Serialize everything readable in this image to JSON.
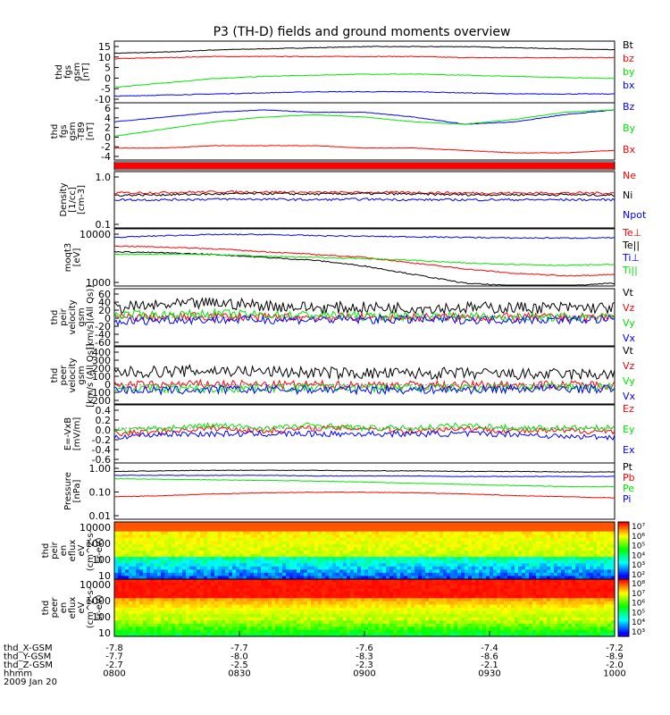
{
  "title": "P3 (TH-D) fields and ground moments overview",
  "colors": {
    "black": "#000000",
    "red": "#ff0000",
    "green": "#00e600",
    "blue": "#0000ff"
  },
  "chart_data": [
    {
      "type": "line",
      "ylabel": [
        "thd",
        "fgs",
        "gsm",
        "[nT]"
      ],
      "yticks": [
        "15",
        "10",
        "5",
        "0",
        "-5",
        "-10"
      ],
      "ylim": [
        -12,
        16
      ],
      "series": [
        {
          "name": "Bt",
          "color": "black",
          "values": [
            10.5,
            11,
            12,
            12.5,
            13,
            13.5,
            13.5,
            13.5,
            13,
            12.5,
            12
          ]
        },
        {
          "name": "bz",
          "color": "red",
          "values": [
            8,
            8.5,
            9,
            9,
            9,
            9,
            9,
            8.5,
            8.5,
            8.5,
            8.5
          ]
        },
        {
          "name": "by",
          "color": "green",
          "values": [
            -5,
            -3,
            -1,
            0,
            0.5,
            1,
            1,
            0.5,
            0,
            -0.5,
            -1
          ]
        },
        {
          "name": "bx",
          "color": "blue",
          "values": [
            -9,
            -8.5,
            -8,
            -7.5,
            -7,
            -7,
            -7,
            -7.5,
            -8,
            -8,
            -8
          ]
        }
      ]
    },
    {
      "type": "line",
      "ylabel": [
        "thd",
        "fgs",
        "gsm",
        "-T89",
        "[nT]"
      ],
      "yticks": [
        "6",
        "4",
        "2",
        "0",
        "-2",
        "-4"
      ],
      "ylim": [
        -5,
        7
      ],
      "series": [
        {
          "name": "Bz",
          "color": "blue",
          "values": [
            3,
            4,
            5,
            5.5,
            5,
            5,
            4,
            2.5,
            3,
            4.5,
            5.5
          ]
        },
        {
          "name": "By",
          "color": "green",
          "values": [
            0,
            1.5,
            3,
            4,
            4.5,
            4,
            3,
            2.5,
            3.5,
            5,
            5.5
          ]
        },
        {
          "name": "Bx",
          "color": "red",
          "values": [
            -2.5,
            -2.5,
            -2,
            -2,
            -2,
            -2.5,
            -2.5,
            -3,
            -3.5,
            -3.5,
            -3
          ]
        }
      ]
    },
    {
      "type": "line",
      "ylabel": [
        "Density",
        "[1/cc]",
        "[cm-3]"
      ],
      "yticks": [
        "1.0",
        "0.1"
      ],
      "ylim": [
        0,
        1
      ],
      "series": [
        {
          "name": "Ne",
          "color": "red",
          "values": [
            0.62,
            0.63,
            0.64,
            0.64,
            0.63,
            0.63,
            0.63,
            0.62,
            0.62,
            0.62,
            0.62
          ]
        },
        {
          "name": "Ni",
          "color": "black",
          "values": [
            0.58,
            0.59,
            0.6,
            0.61,
            0.6,
            0.61,
            0.6,
            0.59,
            0.59,
            0.59,
            0.58
          ]
        },
        {
          "name": "Npot",
          "color": "blue",
          "values": [
            0.5,
            0.5,
            0.51,
            0.51,
            0.5,
            0.51,
            0.5,
            0.5,
            0.5,
            0.5,
            0.5
          ]
        }
      ]
    },
    {
      "type": "line",
      "ylabel": [
        "moqt3",
        "[eV]"
      ],
      "yticks": [
        "10000",
        "1000"
      ],
      "ylim": [
        0,
        1
      ],
      "series": [
        {
          "name": "Te⊥",
          "color": "red",
          "values": [
            0.7,
            0.68,
            0.65,
            0.6,
            0.55,
            0.5,
            0.4,
            0.3,
            0.22,
            0.18,
            0.2
          ]
        },
        {
          "name": "Te||",
          "color": "black",
          "values": [
            0.6,
            0.58,
            0.55,
            0.5,
            0.45,
            0.35,
            0.2,
            0.05,
            0.0,
            0.0,
            0.05
          ]
        },
        {
          "name": "Ti⊥",
          "color": "blue",
          "values": [
            0.85,
            0.88,
            0.9,
            0.9,
            0.88,
            0.87,
            0.86,
            0.85,
            0.84,
            0.84,
            0.84
          ]
        },
        {
          "name": "Ti||",
          "color": "green",
          "values": [
            0.55,
            0.56,
            0.55,
            0.52,
            0.5,
            0.48,
            0.45,
            0.4,
            0.38,
            0.36,
            0.38
          ]
        }
      ]
    },
    {
      "type": "line",
      "ylabel": [
        "thd",
        "peir",
        "velocity",
        "gsm",
        "[km/s](All Qs)]"
      ],
      "yticks": [
        "60",
        "40",
        "20",
        "0",
        "-20",
        "-40",
        "-60"
      ],
      "ylim": [
        -60,
        60
      ],
      "series": [
        {
          "name": "Vt",
          "color": "black",
          "values": [
            20,
            25,
            30,
            25,
            20,
            20,
            20,
            20,
            20,
            20,
            20
          ]
        },
        {
          "name": "Vz",
          "color": "red",
          "values": [
            0,
            0,
            2,
            0,
            0,
            0,
            0,
            0,
            0,
            0,
            0
          ]
        },
        {
          "name": "Vy",
          "color": "green",
          "values": [
            5,
            5,
            8,
            5,
            5,
            2,
            2,
            2,
            0,
            0,
            0
          ]
        },
        {
          "name": "Vx",
          "color": "blue",
          "values": [
            -10,
            -5,
            -5,
            -5,
            -5,
            -5,
            -5,
            -5,
            -5,
            -5,
            -5
          ]
        }
      ]
    },
    {
      "type": "line",
      "ylabel": [
        "thd",
        "peer",
        "velocity",
        "gsm",
        "[km/s (All Qs)]"
      ],
      "yticks": [
        "400",
        "300",
        "200",
        "100",
        "0",
        "-100",
        "-200"
      ],
      "ylim": [
        -200,
        400
      ],
      "series": [
        {
          "name": "Vt",
          "color": "black",
          "values": [
            130,
            140,
            150,
            140,
            130,
            120,
            120,
            120,
            110,
            110,
            110
          ]
        },
        {
          "name": "Vz",
          "color": "red",
          "values": [
            0,
            0,
            10,
            0,
            0,
            0,
            0,
            0,
            0,
            0,
            0
          ]
        },
        {
          "name": "Vy",
          "color": "green",
          "values": [
            -30,
            -40,
            -40,
            -30,
            -30,
            -30,
            -30,
            -30,
            -20,
            -20,
            -20
          ]
        },
        {
          "name": "Vx",
          "color": "blue",
          "values": [
            -50,
            -60,
            -50,
            -50,
            -50,
            -50,
            -50,
            -50,
            -40,
            -40,
            -40
          ]
        }
      ]
    },
    {
      "type": "line",
      "ylabel": [
        "E=-VxB",
        "[mV/m]"
      ],
      "yticks": [
        "0.4",
        "0.2",
        "0.0",
        "-0.2",
        "-0.4",
        "-0.6"
      ],
      "ylim": [
        -0.6,
        0.4
      ],
      "series": [
        {
          "name": "Ez",
          "color": "red",
          "values": [
            -0.1,
            -0.05,
            0,
            -0.05,
            0,
            0,
            -0.05,
            0,
            -0.05,
            -0.05,
            -0.05
          ]
        },
        {
          "name": "Ey",
          "color": "green",
          "values": [
            -0.05,
            0,
            0.05,
            0,
            0.05,
            0,
            0,
            0.05,
            0,
            0,
            0
          ]
        },
        {
          "name": "Ex",
          "color": "blue",
          "values": [
            -0.15,
            -0.1,
            -0.1,
            -0.1,
            -0.1,
            -0.1,
            -0.1,
            -0.1,
            -0.1,
            -0.15,
            -0.15
          ]
        }
      ]
    },
    {
      "type": "line",
      "ylabel": [
        "Pressure",
        "[nPa]"
      ],
      "yticks": [
        "1.00",
        "0.10",
        "0.01"
      ],
      "ylim": [
        0,
        1
      ],
      "series": [
        {
          "name": "Pt",
          "color": "black",
          "values": [
            0.85,
            0.86,
            0.87,
            0.87,
            0.87,
            0.86,
            0.86,
            0.85,
            0.85,
            0.84,
            0.84
          ]
        },
        {
          "name": "Pb",
          "color": "red",
          "values": [
            0.4,
            0.42,
            0.45,
            0.47,
            0.48,
            0.48,
            0.47,
            0.45,
            0.42,
            0.4,
            0.38
          ]
        },
        {
          "name": "Pe",
          "color": "green",
          "values": [
            0.72,
            0.71,
            0.7,
            0.69,
            0.68,
            0.66,
            0.64,
            0.62,
            0.6,
            0.58,
            0.58
          ]
        },
        {
          "name": "Pi",
          "color": "blue",
          "values": [
            0.78,
            0.78,
            0.78,
            0.78,
            0.77,
            0.77,
            0.77,
            0.76,
            0.76,
            0.76,
            0.76
          ]
        }
      ]
    },
    {
      "type": "heatmap",
      "ylabel": [
        "thd",
        "peir",
        "en",
        "eflux",
        "eV",
        "(cm^2-s-",
        "sr-eV)"
      ],
      "yticks": [
        "10000",
        "1000",
        "100",
        "10"
      ],
      "colorbar": [
        "10⁷",
        "10⁶",
        "10⁵",
        "10⁴",
        "10³",
        "10²"
      ]
    },
    {
      "type": "heatmap",
      "ylabel": [
        "thd",
        "peer",
        "en",
        "eflux",
        "eV",
        "(cm^2-s-",
        "sr-eV)"
      ],
      "yticks": [
        "10000",
        "1000",
        "100",
        "10"
      ],
      "colorbar": [
        "10⁸",
        "10⁷",
        "10⁶",
        "10⁵",
        "10⁴",
        "10³"
      ]
    }
  ],
  "side_labels_extra": {
    "blank_panel": ""
  },
  "xaxis": {
    "rows": [
      {
        "label": "thd_X-GSM",
        "values": [
          "-7.8",
          "-7.7",
          "-7.6",
          "-7.4",
          "-7.2"
        ]
      },
      {
        "label": "thd_Y-GSM",
        "values": [
          "-7.7",
          "-8.0",
          "-8.3",
          "-8.6",
          "-8.9"
        ]
      },
      {
        "label": "thd_Z-GSM",
        "values": [
          "-2.7",
          "-2.5",
          "-2.3",
          "-2.1",
          "-2.0"
        ]
      },
      {
        "label": "hhmm",
        "values": [
          "0800",
          "0830",
          "0900",
          "0930",
          "1000"
        ]
      }
    ],
    "date": "2009 Jan 20"
  }
}
